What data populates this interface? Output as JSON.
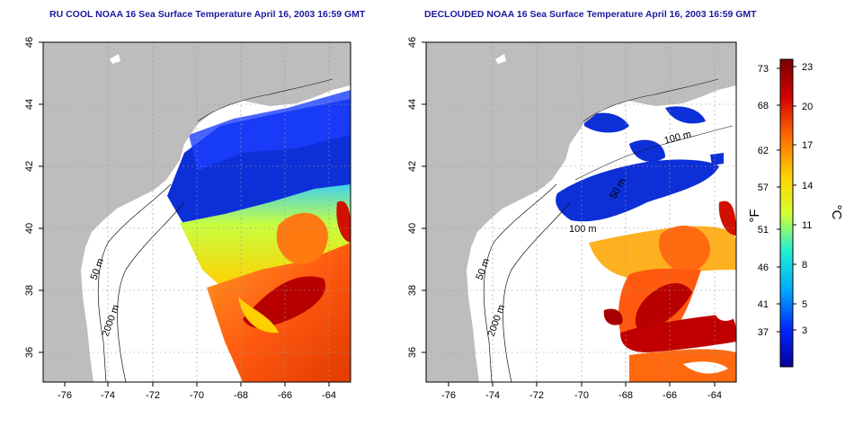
{
  "panels": [
    {
      "id": "left",
      "title": "RU COOL NOAA 16 Sea Surface Temperature April 16, 2003 16:59 GMT",
      "contour_labels": [
        "50 m",
        "2000 m"
      ]
    },
    {
      "id": "right",
      "title": "DECLOUDED NOAA 16 Sea Surface Temperature April 16, 2003 16:59 GMT",
      "contour_labels": [
        "50 m",
        "2000 m",
        "100 m",
        "50 m",
        "100 m"
      ]
    }
  ],
  "map": {
    "lon_ticks": [
      "-76",
      "-74",
      "-72",
      "-70",
      "-68",
      "-66",
      "-64"
    ],
    "lat_ticks": [
      "46",
      "44",
      "42",
      "40",
      "38",
      "36"
    ],
    "land_color": "#bdbdbd",
    "ocean_no_data_color": "#ffffff"
  },
  "colorbar": {
    "fahrenheit_label": "°F",
    "celsius_label": "°C",
    "fahrenheit_ticks": [
      "73",
      "68",
      "62",
      "57",
      "51",
      "46",
      "41",
      "37"
    ],
    "celsius_ticks": [
      "23",
      "20",
      "17",
      "14",
      "11",
      "8",
      "5",
      "3"
    ],
    "colors": [
      "#08009a",
      "#0026ff",
      "#00aaff",
      "#22f0d0",
      "#d7ff30",
      "#ffd100",
      "#ff6a00",
      "#d20000",
      "#7a0000"
    ]
  }
}
